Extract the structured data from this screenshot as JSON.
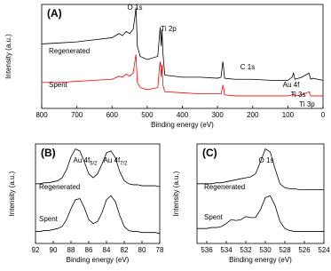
{
  "chart_data": [
    {
      "type": "line",
      "panel_label": "(A)",
      "xlabel": "Binding energy (eV)",
      "ylabel": "Intensity (a.u.)",
      "xlim": [
        800,
        0
      ],
      "xticks": [
        800,
        700,
        600,
        500,
        400,
        300,
        200,
        100,
        0
      ],
      "ylim": [
        0,
        100
      ],
      "x": [
        800,
        750,
        700,
        650,
        600,
        580,
        570,
        560,
        550,
        540,
        535,
        532,
        530,
        528,
        520,
        500,
        470,
        465,
        463,
        460,
        458,
        455,
        450,
        400,
        350,
        300,
        290,
        285,
        283,
        280,
        250,
        200,
        150,
        100,
        88,
        84,
        80,
        60,
        40,
        35,
        30,
        0
      ],
      "series": [
        {
          "name": "Regenerated",
          "color": "#000000",
          "values": [
            62,
            63,
            64,
            66,
            68,
            72,
            70,
            74,
            72,
            76,
            88,
            97,
            80,
            60,
            50,
            47,
            50,
            70,
            78,
            60,
            76,
            52,
            32,
            30,
            30,
            29,
            30,
            45,
            40,
            29,
            28,
            28,
            27,
            27,
            30,
            34,
            28,
            30,
            34,
            28,
            29,
            27
          ]
        },
        {
          "name": "Spent",
          "color": "#ff0000",
          "values": [
            25,
            25,
            26,
            27,
            28,
            31,
            30,
            33,
            31,
            34,
            45,
            52,
            38,
            25,
            20,
            18,
            20,
            40,
            45,
            30,
            42,
            22,
            16,
            15,
            14,
            14,
            14,
            22,
            20,
            13,
            12,
            12,
            12,
            12,
            13,
            14,
            12,
            13,
            16,
            12,
            12,
            12
          ]
        }
      ],
      "annotations": [
        {
          "text": "O 1s"
        },
        {
          "text": "Ti 2p"
        },
        {
          "text": "C 1s"
        },
        {
          "text": "Au 4f"
        },
        {
          "text": "Ti 3s"
        },
        {
          "text": "Ti 3p"
        }
      ]
    },
    {
      "type": "line",
      "panel_label": "(B)",
      "xlabel": "Binding energy (eV)",
      "ylabel": "Intensity (a.u.)",
      "xlim": [
        92,
        78
      ],
      "xticks": [
        92,
        90,
        88,
        86,
        84,
        82,
        80,
        78
      ],
      "ylim": [
        0,
        100
      ],
      "x": [
        92,
        91.5,
        91,
        90.5,
        90,
        89.5,
        89,
        88.5,
        88,
        87.5,
        87,
        86.5,
        86,
        85.5,
        85,
        84.5,
        84,
        83.5,
        83,
        82.5,
        82,
        81.5,
        81,
        80.5,
        80,
        79.5,
        79,
        78.5,
        78
      ],
      "series": [
        {
          "name": "Regenerated",
          "color": "#000000",
          "values": [
            60,
            60,
            61,
            61,
            62,
            63,
            66,
            74,
            87,
            95,
            93,
            82,
            70,
            66,
            70,
            80,
            91,
            93,
            86,
            72,
            63,
            60,
            59,
            59,
            58,
            58,
            58,
            58,
            57
          ]
        },
        {
          "name": "Spent",
          "color": "#000000",
          "values": [
            12,
            12,
            13,
            13,
            14,
            15,
            17,
            24,
            35,
            44,
            45,
            36,
            24,
            20,
            22,
            31,
            44,
            48,
            42,
            28,
            17,
            13,
            12,
            12,
            11,
            11,
            11,
            11,
            10
          ]
        }
      ],
      "annotations": [
        {
          "text": "Au 4f",
          "sub": "5/2"
        },
        {
          "text": "Au 4f",
          "sub": "7/2"
        }
      ]
    },
    {
      "type": "line",
      "panel_label": "(C)",
      "xlabel": "Binding energy (eV)",
      "ylabel": "Intensity (a.u.)",
      "xlim": [
        537,
        524
      ],
      "xticks": [
        536,
        534,
        532,
        530,
        528,
        526,
        524
      ],
      "ylim": [
        0,
        100
      ],
      "x": [
        537,
        536.5,
        536,
        535.5,
        535,
        534.5,
        534,
        533.5,
        533,
        532.5,
        532,
        531.5,
        531,
        530.5,
        530,
        529.5,
        529,
        528.5,
        528,
        527.5,
        527,
        526.5,
        526,
        525.5,
        525,
        524.5,
        524
      ],
      "series": [
        {
          "name": "Regenerated",
          "color": "#000000",
          "values": [
            60,
            60,
            60,
            60,
            61,
            61,
            62,
            63,
            64,
            65,
            66,
            67,
            70,
            82,
            95,
            92,
            75,
            60,
            56,
            55,
            55,
            54,
            54,
            54,
            54,
            54,
            54
          ]
        },
        {
          "name": "Spent",
          "color": "#000000",
          "values": [
            15,
            15,
            15,
            16,
            16,
            17,
            20,
            24,
            23,
            24,
            27,
            26,
            26,
            34,
            46,
            48,
            38,
            22,
            15,
            13,
            12,
            12,
            12,
            12,
            12,
            12,
            12
          ]
        }
      ],
      "annotations": [
        {
          "text": "O 1s"
        }
      ]
    }
  ]
}
